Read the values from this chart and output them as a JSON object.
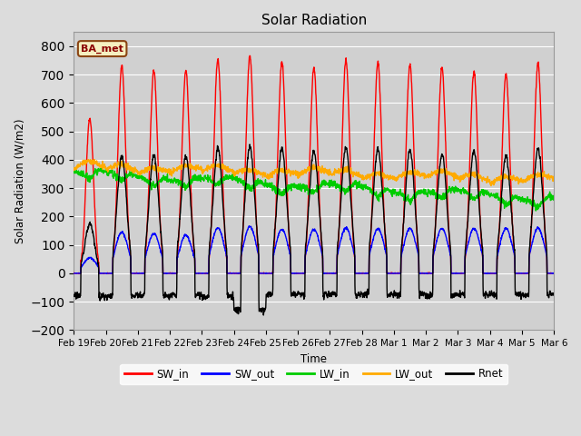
{
  "title": "Solar Radiation",
  "ylabel": "Solar Radiation (W/m2)",
  "xlabel": "Time",
  "ylim": [
    -200,
    850
  ],
  "yticks": [
    -200,
    -100,
    0,
    100,
    200,
    300,
    400,
    500,
    600,
    700,
    800
  ],
  "background_color": "#dcdcdc",
  "plot_bg_color": "#d0d0d0",
  "grid_color": "#ffffff",
  "legend_label": "BA_met",
  "colors": {
    "SW_in": "#ff0000",
    "SW_out": "#0000ff",
    "LW_in": "#00cc00",
    "LW_out": "#ffaa00",
    "Rnet": "#000000"
  },
  "n_days": 15,
  "tick_labels": [
    "Feb 19",
    "Feb 20",
    "Feb 21",
    "Feb 22",
    "Feb 23",
    "Feb 24",
    "Feb 25",
    "Feb 26",
    "Feb 27",
    "Feb 28",
    "Mar 1",
    "Mar 2",
    "Mar 3",
    "Mar 4",
    "Mar 5",
    "Mar 6"
  ],
  "sw_peaks": [
    545,
    730,
    715,
    715,
    755,
    765,
    745,
    725,
    750,
    740,
    735,
    725,
    710,
    700,
    740
  ],
  "sw_out_peaks": [
    55,
    145,
    140,
    135,
    160,
    165,
    155,
    155,
    160,
    158,
    158,
    158,
    158,
    158,
    160
  ],
  "rnet_peaks": [
    175,
    415,
    420,
    415,
    440,
    445,
    440,
    430,
    445,
    440,
    435,
    420,
    430,
    415,
    440
  ],
  "rnet_night": [
    -80,
    -80,
    -80,
    -75,
    -80,
    -130,
    -75,
    -75,
    -75,
    -75,
    -75,
    -75,
    -75,
    -75,
    -75
  ]
}
